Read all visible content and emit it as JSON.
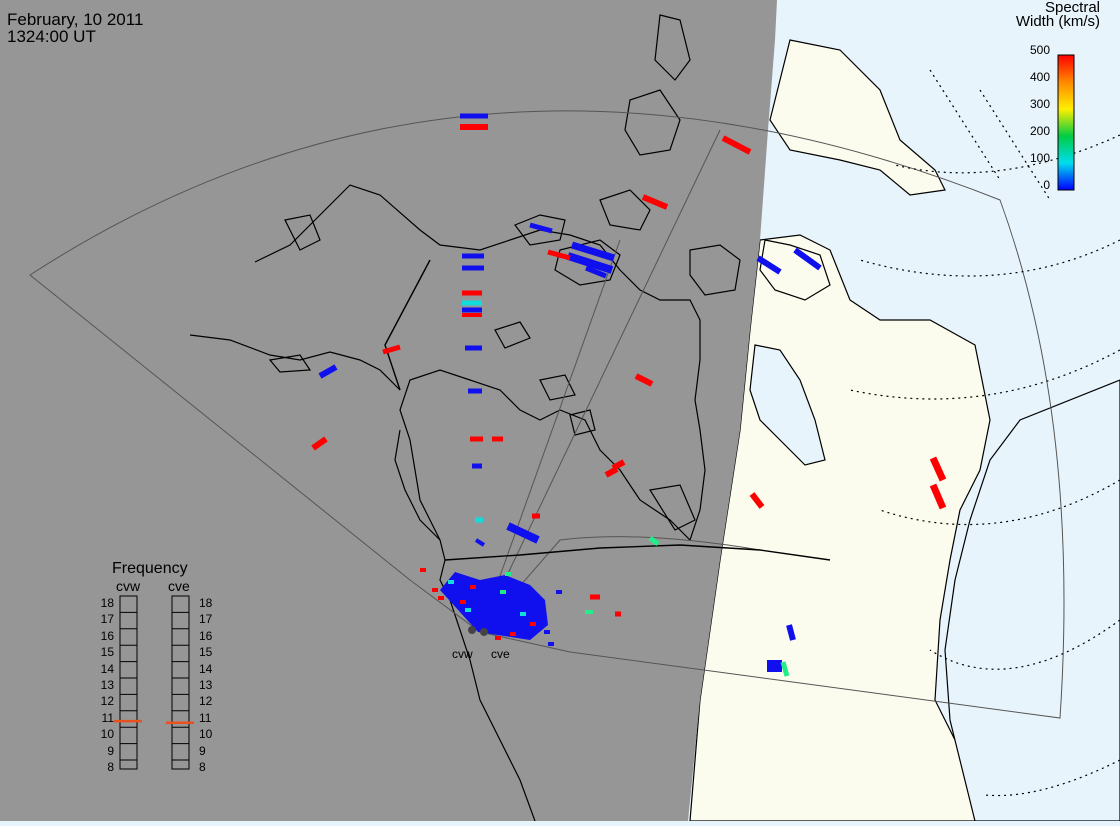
{
  "header": {
    "date": "February, 10 2011",
    "time": "1324:00 UT"
  },
  "spectral_legend": {
    "title_line1": "Spectral",
    "title_line2": "Width (km/s)",
    "ticks": [
      "500",
      "400",
      "300",
      "200",
      "100",
      "0"
    ],
    "colors": [
      "#0000ff",
      "#00ddee",
      "#00cc44",
      "#ffee00",
      "#ff8800",
      "#ff0000"
    ]
  },
  "frequency_panel": {
    "title": "Frequency",
    "radars": [
      "cvw",
      "cve"
    ],
    "ticks": [
      "18",
      "17",
      "16",
      "15",
      "14",
      "13",
      "12",
      "11",
      "10",
      "9",
      "8"
    ],
    "cvw_value_mhz": 10.8,
    "cve_value_mhz": 10.7,
    "marker_color": "#e8501e"
  },
  "radar_sites": {
    "west_label": "cvw",
    "east_label": "cve"
  },
  "colors": {
    "night_shade": "#969696",
    "day_land": "#fbfbee",
    "ocean": "#e8f4fb",
    "red_echo": "#ff0000",
    "blue_echo": "#1010ee",
    "cyan_echo": "#11dddd",
    "green_echo": "#22ee88"
  }
}
